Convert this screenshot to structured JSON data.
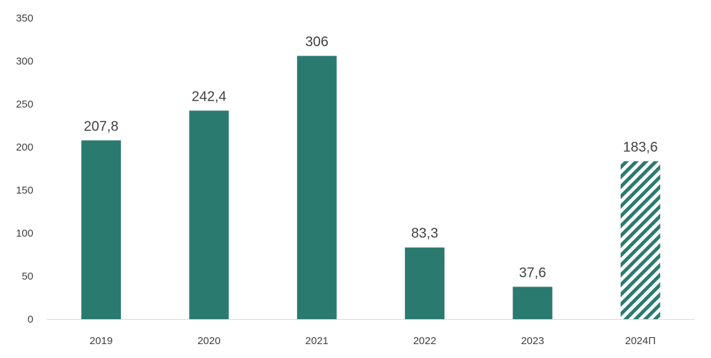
{
  "chart_data": {
    "type": "bar",
    "categories": [
      "2019",
      "2020",
      "2021",
      "2022",
      "2023",
      "2024П"
    ],
    "values": [
      207.8,
      242.4,
      306,
      83.3,
      37.6,
      183.6
    ],
    "data_labels": [
      "207,8",
      "242,4",
      "306",
      "83,3",
      "37,6",
      "183,6"
    ],
    "forecast": [
      false,
      false,
      false,
      false,
      false,
      true
    ],
    "ylim": [
      0,
      350
    ],
    "y_ticks": [
      0,
      50,
      100,
      150,
      200,
      250,
      300,
      350
    ],
    "title": "",
    "xlabel": "",
    "ylabel": "",
    "grid": false,
    "colors": {
      "bar": "#2b7a70",
      "axis": "#d9d9d9",
      "text": "#404040"
    }
  }
}
